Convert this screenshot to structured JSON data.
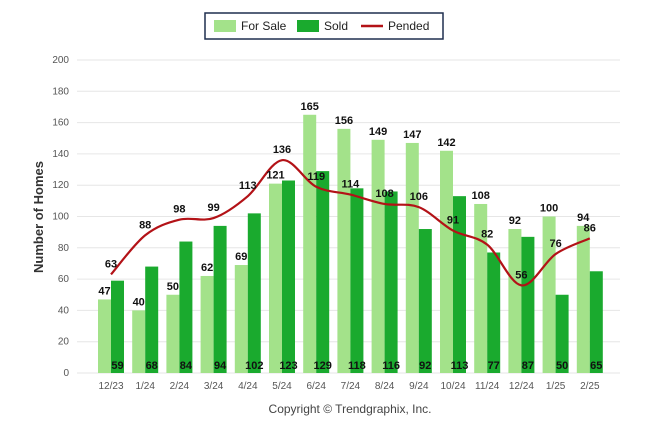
{
  "chart_data": {
    "type": "bar",
    "title": "",
    "xlabel": "",
    "ylabel": "Number of Homes",
    "ylim": [
      0,
      200
    ],
    "yticks": [
      "0",
      "20",
      "40",
      "60",
      "80",
      "100",
      "120",
      "140",
      "160",
      "180",
      "200"
    ],
    "grid": true,
    "legend_position": "top",
    "categories": [
      "12/23",
      "1/24",
      "2/24",
      "3/24",
      "4/24",
      "5/24",
      "6/24",
      "7/24",
      "8/24",
      "9/24",
      "10/24",
      "11/24",
      "12/24",
      "1/25",
      "2/25"
    ],
    "series": [
      {
        "name": "For Sale",
        "kind": "bar",
        "color": "#a3e28a",
        "values": [
          47,
          40,
          50,
          62,
          69,
          121,
          165,
          156,
          149,
          147,
          142,
          108,
          92,
          100,
          94
        ]
      },
      {
        "name": "Sold",
        "kind": "bar",
        "color": "#1aaa2e",
        "values": [
          59,
          68,
          84,
          94,
          102,
          123,
          129,
          118,
          116,
          92,
          113,
          77,
          87,
          50,
          65
        ]
      },
      {
        "name": "Pended",
        "kind": "line",
        "color": "#b31217",
        "values": [
          63,
          88,
          98,
          99,
          113,
          136,
          119,
          114,
          108,
          106,
          91,
          82,
          56,
          76,
          86
        ]
      }
    ]
  },
  "footer": {
    "copyright": "Copyright © Trendgraphix, Inc."
  }
}
